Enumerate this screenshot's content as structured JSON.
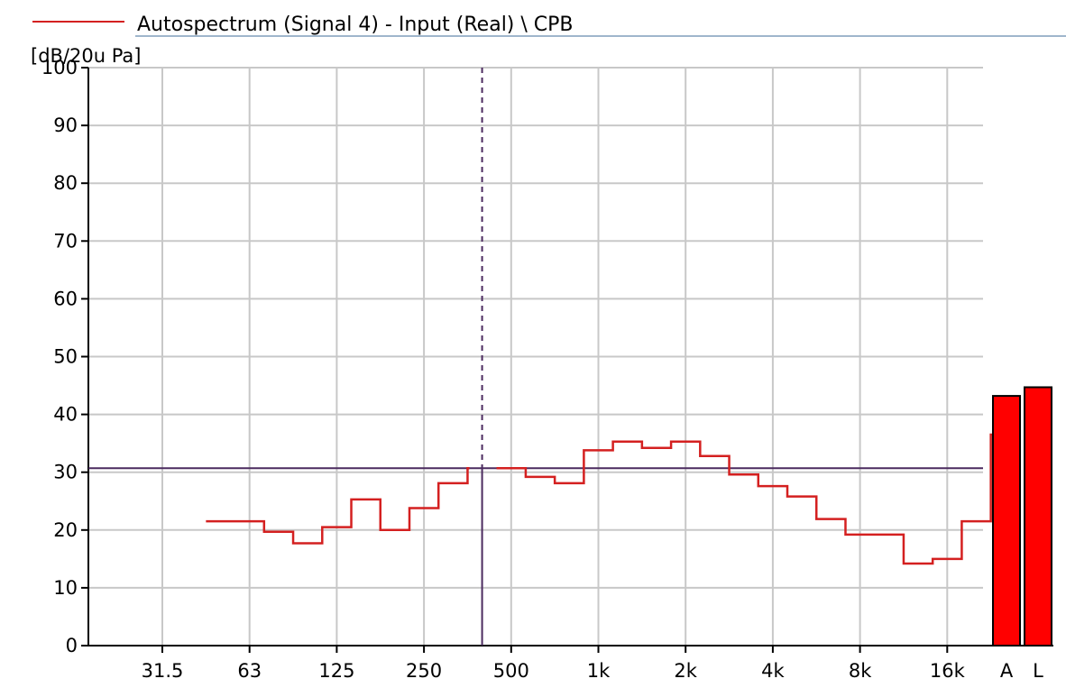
{
  "legend": {
    "label": "Autospectrum (Signal 4) - Input (Real) \\ CPB",
    "color": "#d42020"
  },
  "chart_data": {
    "type": "line",
    "step": true,
    "title": "",
    "ylabel": "[dB/20u Pa]",
    "xlabel": "",
    "x_scale": "octave",
    "ylim": [
      0,
      100
    ],
    "y_ticks": [
      0,
      10,
      20,
      30,
      40,
      50,
      60,
      70,
      80,
      90,
      100
    ],
    "x_tick_labels": [
      "31.5",
      "63",
      "125",
      "250",
      "500",
      "1k",
      "2k",
      "4k",
      "8k",
      "16k"
    ],
    "grid": true,
    "series": [
      {
        "name": "Autospectrum (Signal 4) - Input (Real) \\ CPB",
        "color": "#d42020",
        "bands": [
          [
            "40",
            21.5
          ],
          [
            "50",
            21.5
          ],
          [
            "63",
            19.7
          ],
          [
            "80",
            17.7
          ],
          [
            "100",
            20.5
          ],
          [
            "125",
            25.3
          ],
          [
            "160",
            20.0
          ],
          [
            "200",
            23.8
          ],
          [
            "250",
            28.1
          ],
          [
            "315",
            30.7
          ],
          [
            "400",
            30.7
          ],
          [
            "500",
            29.2
          ],
          [
            "630",
            28.1
          ],
          [
            "800",
            33.8
          ],
          [
            "1k",
            35.3
          ],
          [
            "1.25k",
            34.2
          ],
          [
            "1.6k",
            35.3
          ],
          [
            "2k",
            32.8
          ],
          [
            "2.5k",
            29.6
          ],
          [
            "3.15k",
            27.6
          ],
          [
            "4k",
            25.8
          ],
          [
            "5k",
            21.9
          ],
          [
            "6.3k",
            19.2
          ],
          [
            "8k",
            19.2
          ],
          [
            "10k",
            14.2
          ],
          [
            "12.5k",
            15.0
          ],
          [
            "16k",
            21.5
          ],
          [
            "20k",
            36.5
          ]
        ]
      }
    ],
    "overall_bars": [
      {
        "label": "A",
        "value": 43.2,
        "color": "#ff0000"
      },
      {
        "label": "L",
        "value": 44.7,
        "color": "#ff0000"
      }
    ],
    "cursor": {
      "frequency": "315",
      "level": 30.7,
      "color": "#4b2b5f"
    }
  }
}
